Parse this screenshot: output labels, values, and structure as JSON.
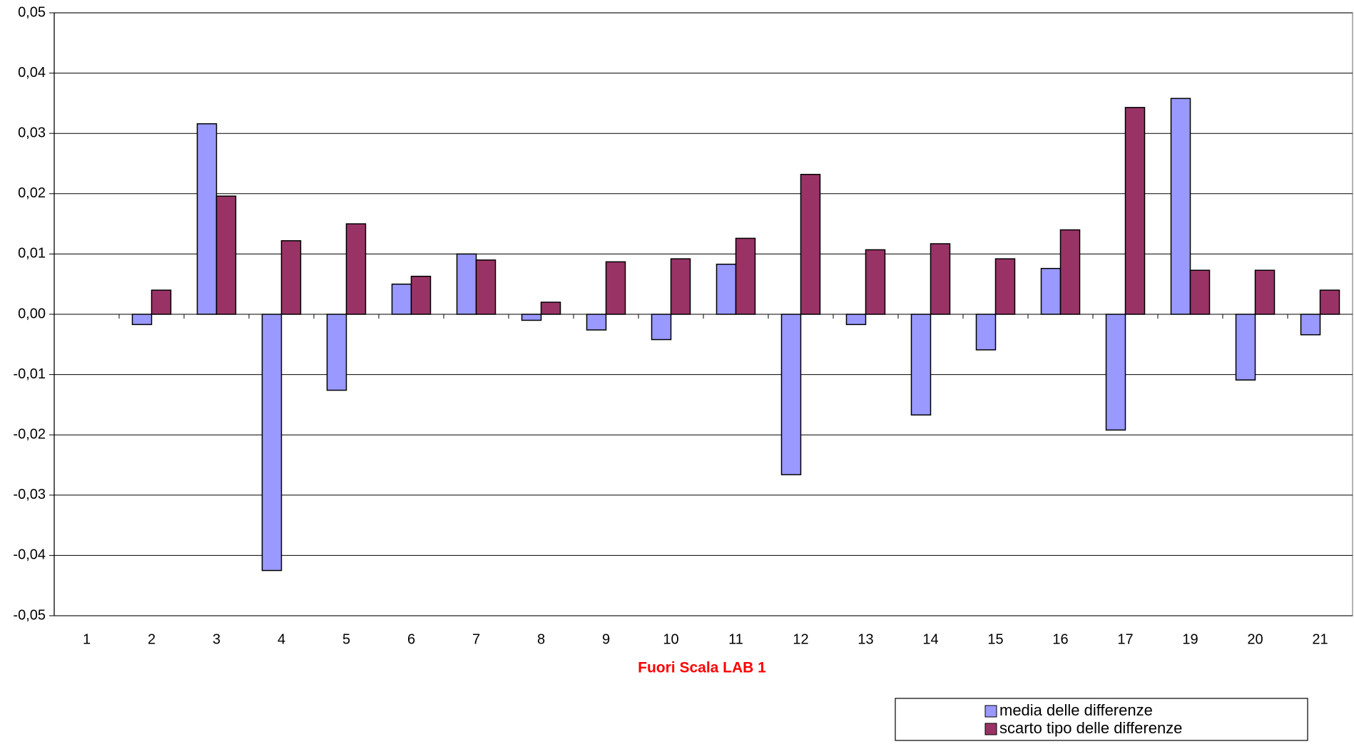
{
  "chart_data": {
    "type": "bar",
    "x_label": "Fuori Scala LAB 1",
    "categories": [
      "1",
      "2",
      "3",
      "4",
      "5",
      "6",
      "7",
      "8",
      "9",
      "10",
      "11",
      "12",
      "13",
      "14",
      "15",
      "16",
      "17",
      "19",
      "20",
      "21"
    ],
    "series": [
      {
        "name": "media delle differenze",
        "color": "#9999ff",
        "values": [
          null,
          -0.0017,
          0.0316,
          -0.0425,
          -0.0126,
          0.005,
          0.01,
          -0.001,
          -0.0026,
          -0.0042,
          0.0083,
          -0.0266,
          -0.0017,
          -0.0167,
          -0.0059,
          0.0076,
          -0.0192,
          0.0358,
          -0.0109,
          -0.0034
        ]
      },
      {
        "name": "scarto tipo delle differenze",
        "color": "#993366",
        "values": [
          null,
          0.004,
          0.0196,
          0.0122,
          0.015,
          0.0063,
          0.009,
          0.002,
          0.0087,
          0.0092,
          0.0126,
          0.0232,
          0.0107,
          0.0117,
          0.0092,
          0.014,
          0.0343,
          0.0073,
          0.0073,
          0.004
        ]
      }
    ],
    "ylim": [
      -0.05,
      0.05
    ],
    "yticks": [
      {
        "value": -0.05,
        "label": "-0,05"
      },
      {
        "value": -0.04,
        "label": "-0,04"
      },
      {
        "value": -0.03,
        "label": "-0,03"
      },
      {
        "value": -0.02,
        "label": "-0,02"
      },
      {
        "value": -0.01,
        "label": "-0,01"
      },
      {
        "value": 0,
        "label": "0,00"
      },
      {
        "value": 0.01,
        "label": "0,01"
      },
      {
        "value": 0.02,
        "label": "0,02"
      },
      {
        "value": 0.03,
        "label": "0,03"
      },
      {
        "value": 0.04,
        "label": "0,04"
      },
      {
        "value": 0.05,
        "label": "0,05"
      }
    ],
    "grid": true
  }
}
